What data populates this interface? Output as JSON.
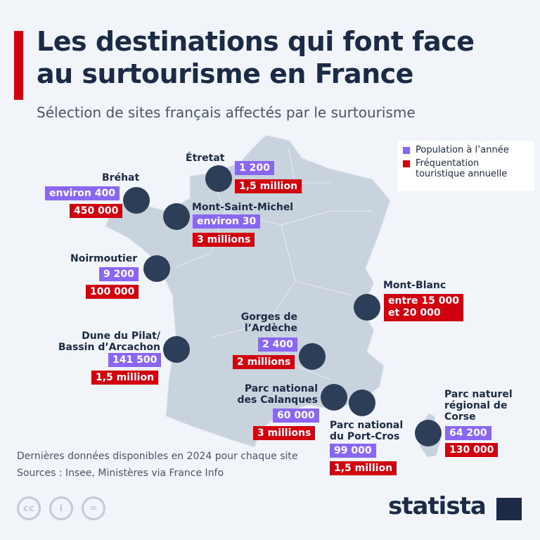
{
  "header": {
    "title_line1": "Les destinations qui font face",
    "title_line2": "au surtourisme en France",
    "subtitle": "Sélection de sites français affectés par le surtourisme"
  },
  "legend": {
    "population": "Population à l’année",
    "frequentation": "Fréquentation touristique annuelle"
  },
  "colors": {
    "population": "#8a67f0",
    "frequentation": "#d0000f",
    "marker": "#2c3e58",
    "map": "#c9d3dd",
    "accent": "#d0000f"
  },
  "sites": {
    "etretat": {
      "name": "Étretat",
      "population": "1 200",
      "visitors": "1,5 million"
    },
    "brehat": {
      "name": "Bréhat",
      "population": "environ 400",
      "visitors": "450 000"
    },
    "msm": {
      "name": "Mont-Saint-Michel",
      "population": "environ 30",
      "visitors": "3 millions"
    },
    "noirmoutier": {
      "name": "Noirmoutier",
      "population": "9 200",
      "visitors": "100 000"
    },
    "montblanc": {
      "name": "Mont-Blanc",
      "visitors_line1": "entre 15 000",
      "visitors_line2": "et 20 000"
    },
    "ardeche": {
      "name_line1": "Gorges de",
      "name_line2": "l’Ardèche",
      "population": "2 400",
      "visitors": "2 millions"
    },
    "pilat": {
      "name_line1": "Dune du Pilat/",
      "name_line2": "Bassin d’Arcachon",
      "population": "141 500",
      "visitors": "1,5 million"
    },
    "calanques": {
      "name_line1": "Parc national",
      "name_line2": "des Calanques",
      "population": "60 000",
      "visitors": "3 millions"
    },
    "portcros": {
      "name_line1": "Parc national",
      "name_line2": "du Port-Cros",
      "population": "99 000",
      "visitors": "1,5 million"
    },
    "corse": {
      "name_line1": "Parc naturel",
      "name_line2": "régional de",
      "name_line3": "Corse",
      "population": "64 200",
      "visitors": "130 000"
    }
  },
  "footer": {
    "note": "Dernières données disponibles en 2024 pour chaque site",
    "sources": "Sources : Insee, Ministères via France Info",
    "cc_labels": [
      "cc",
      "i",
      "="
    ],
    "brand": "statista"
  }
}
